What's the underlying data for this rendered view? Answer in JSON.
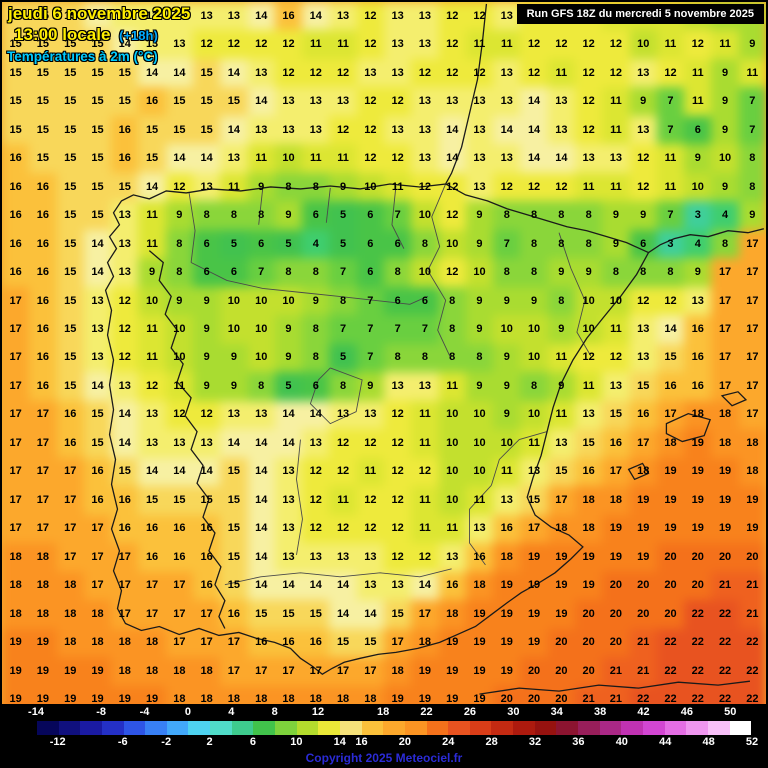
{
  "header": {
    "date_line": "jeudi 6 novembre 2025",
    "time_line": "13:00 locale",
    "time_offset": "(+18h)",
    "subtitle": "Températures à 2m (°C)",
    "run_banner": "Run GFS 18Z du mercredi 5 novembre 2025"
  },
  "map": {
    "cols": 28,
    "rows": 25,
    "unit": "°C",
    "palette": {
      "3": "#3fcf9a",
      "4": "#3fce6e",
      "5": "#41c24f",
      "6": "#49c447",
      "7": "#69cf40",
      "8": "#8ad63a",
      "9": "#a9dc31",
      "10": "#c3e02e",
      "11": "#dce632",
      "12": "#eeea3c",
      "13": "#f4ee6e",
      "14": "#f7f0a2",
      "15": "#f8d75a",
      "16": "#fbc13b",
      "17": "#fca82c",
      "18": "#fb9423",
      "19": "#f8821c",
      "20": "#f4711b",
      "21": "#ef611f",
      "22": "#e85320"
    },
    "values": [
      [
        15,
        15,
        15,
        14,
        13,
        13,
        13,
        13,
        13,
        14,
        16,
        14,
        13,
        12,
        13,
        13,
        12,
        12,
        13,
        12,
        12,
        12,
        11,
        11,
        11,
        10,
        9,
        9
      ],
      [
        15,
        15,
        15,
        15,
        14,
        13,
        13,
        12,
        12,
        12,
        12,
        11,
        11,
        12,
        13,
        13,
        12,
        11,
        11,
        12,
        12,
        12,
        12,
        10,
        11,
        12,
        11,
        9
      ],
      [
        15,
        15,
        15,
        15,
        15,
        14,
        14,
        15,
        14,
        13,
        12,
        12,
        12,
        13,
        13,
        12,
        12,
        12,
        13,
        12,
        11,
        12,
        12,
        13,
        12,
        11,
        9,
        11
      ],
      [
        15,
        15,
        15,
        15,
        15,
        16,
        15,
        15,
        15,
        14,
        13,
        13,
        13,
        12,
        12,
        13,
        13,
        13,
        13,
        14,
        13,
        12,
        11,
        9,
        7,
        11,
        9,
        7
      ],
      [
        15,
        15,
        15,
        15,
        16,
        15,
        15,
        15,
        14,
        13,
        13,
        13,
        12,
        12,
        13,
        13,
        14,
        13,
        14,
        14,
        13,
        12,
        11,
        13,
        7,
        6,
        9,
        7
      ],
      [
        16,
        15,
        15,
        15,
        16,
        15,
        14,
        14,
        13,
        11,
        10,
        11,
        11,
        12,
        12,
        13,
        14,
        13,
        13,
        14,
        14,
        13,
        13,
        12,
        11,
        9,
        10,
        8
      ],
      [
        16,
        16,
        15,
        15,
        15,
        14,
        12,
        13,
        11,
        9,
        8,
        8,
        9,
        10,
        11,
        12,
        12,
        13,
        12,
        12,
        12,
        11,
        11,
        12,
        11,
        10,
        9,
        8
      ],
      [
        16,
        16,
        15,
        15,
        13,
        11,
        9,
        8,
        8,
        8,
        9,
        6,
        5,
        6,
        7,
        10,
        12,
        9,
        8,
        8,
        8,
        8,
        9,
        9,
        7,
        3,
        4,
        9
      ],
      [
        16,
        16,
        15,
        14,
        13,
        11,
        8,
        6,
        5,
        6,
        5,
        4,
        5,
        6,
        6,
        8,
        10,
        9,
        7,
        8,
        8,
        8,
        9,
        6,
        3,
        4,
        8,
        17
      ],
      [
        16,
        16,
        15,
        14,
        13,
        9,
        8,
        6,
        6,
        7,
        8,
        8,
        7,
        6,
        8,
        10,
        12,
        10,
        8,
        8,
        9,
        9,
        8,
        8,
        8,
        9,
        17,
        17
      ],
      [
        17,
        16,
        15,
        13,
        12,
        10,
        9,
        9,
        10,
        10,
        10,
        9,
        8,
        7,
        6,
        6,
        8,
        9,
        9,
        9,
        8,
        10,
        10,
        12,
        12,
        13,
        17,
        17
      ],
      [
        17,
        16,
        15,
        13,
        12,
        11,
        10,
        9,
        10,
        10,
        9,
        8,
        7,
        7,
        7,
        7,
        8,
        9,
        10,
        10,
        9,
        10,
        11,
        13,
        14,
        16,
        17,
        17
      ],
      [
        17,
        16,
        15,
        13,
        12,
        11,
        10,
        9,
        9,
        10,
        9,
        8,
        5,
        7,
        8,
        8,
        8,
        8,
        9,
        10,
        11,
        12,
        12,
        13,
        15,
        16,
        17,
        17
      ],
      [
        17,
        16,
        15,
        14,
        13,
        12,
        11,
        9,
        9,
        8,
        5,
        6,
        8,
        9,
        13,
        13,
        11,
        9,
        9,
        8,
        9,
        11,
        13,
        15,
        16,
        16,
        17,
        17
      ],
      [
        17,
        17,
        16,
        15,
        14,
        13,
        12,
        12,
        13,
        13,
        14,
        14,
        13,
        13,
        12,
        11,
        10,
        10,
        9,
        10,
        11,
        13,
        15,
        16,
        17,
        18,
        18,
        17
      ],
      [
        17,
        17,
        16,
        15,
        14,
        13,
        13,
        13,
        14,
        14,
        14,
        13,
        12,
        12,
        12,
        11,
        10,
        10,
        10,
        11,
        13,
        15,
        16,
        17,
        18,
        19,
        18,
        18
      ],
      [
        17,
        17,
        17,
        16,
        15,
        14,
        14,
        14,
        15,
        14,
        13,
        12,
        12,
        11,
        12,
        12,
        10,
        10,
        11,
        13,
        15,
        16,
        17,
        18,
        19,
        19,
        19,
        18
      ],
      [
        17,
        17,
        17,
        16,
        16,
        15,
        15,
        15,
        15,
        14,
        13,
        12,
        11,
        12,
        12,
        11,
        10,
        11,
        13,
        15,
        17,
        18,
        18,
        19,
        19,
        19,
        19,
        19
      ],
      [
        17,
        17,
        17,
        17,
        16,
        16,
        16,
        16,
        15,
        14,
        13,
        12,
        12,
        12,
        12,
        11,
        11,
        13,
        16,
        17,
        18,
        18,
        19,
        19,
        19,
        19,
        19,
        19
      ],
      [
        18,
        18,
        17,
        17,
        17,
        16,
        16,
        16,
        15,
        14,
        13,
        13,
        13,
        13,
        12,
        12,
        13,
        16,
        18,
        19,
        19,
        19,
        19,
        19,
        20,
        20,
        20,
        20
      ],
      [
        18,
        18,
        18,
        17,
        17,
        17,
        17,
        16,
        15,
        14,
        14,
        14,
        14,
        13,
        13,
        14,
        16,
        18,
        19,
        19,
        19,
        19,
        20,
        20,
        20,
        20,
        21,
        21
      ],
      [
        18,
        18,
        18,
        18,
        17,
        17,
        17,
        17,
        16,
        15,
        15,
        15,
        14,
        14,
        15,
        17,
        18,
        19,
        19,
        19,
        19,
        20,
        20,
        20,
        20,
        22,
        22,
        21
      ],
      [
        19,
        19,
        18,
        18,
        18,
        18,
        17,
        17,
        17,
        16,
        16,
        16,
        15,
        15,
        17,
        18,
        19,
        19,
        19,
        19,
        20,
        20,
        20,
        21,
        22,
        22,
        22,
        22
      ],
      [
        19,
        19,
        19,
        19,
        18,
        18,
        18,
        18,
        17,
        17,
        17,
        17,
        17,
        17,
        18,
        19,
        19,
        19,
        19,
        20,
        20,
        20,
        21,
        21,
        22,
        22,
        22,
        22
      ],
      [
        19,
        19,
        19,
        19,
        19,
        19,
        18,
        18,
        18,
        18,
        18,
        18,
        18,
        18,
        19,
        19,
        19,
        19,
        20,
        20,
        20,
        21,
        21,
        22,
        22,
        22,
        22,
        22
      ]
    ]
  },
  "legend": {
    "min": -14,
    "max": 52,
    "step": 2,
    "top_labels": [
      -14,
      -8,
      -4,
      0,
      4,
      8,
      12,
      18,
      22,
      26,
      30,
      34,
      38,
      42,
      46,
      50
    ],
    "bottom_labels": [
      -12,
      -6,
      -2,
      2,
      6,
      10,
      14,
      16,
      20,
      24,
      28,
      32,
      36,
      40,
      44,
      48,
      52
    ],
    "colors": [
      "#06065a",
      "#10107e",
      "#1a1aa2",
      "#2430c6",
      "#2e55e6",
      "#3880f5",
      "#42a8fa",
      "#4ed2f0",
      "#50dcc8",
      "#3ecb8e",
      "#41c34b",
      "#7ed23c",
      "#b4dc2d",
      "#eae838",
      "#f6e27a",
      "#fbc13b",
      "#fca82c",
      "#fb9423",
      "#f4711b",
      "#e85320",
      "#d93d18",
      "#c42a12",
      "#ad1a0e",
      "#96120f",
      "#8c1430",
      "#981e5a",
      "#aa2886",
      "#c032b2",
      "#d246d2",
      "#e46ee4",
      "#ef96ef",
      "#f8c0f8",
      "#ffffff"
    ],
    "copyright": "Copyright 2025 Meteociel.fr"
  }
}
